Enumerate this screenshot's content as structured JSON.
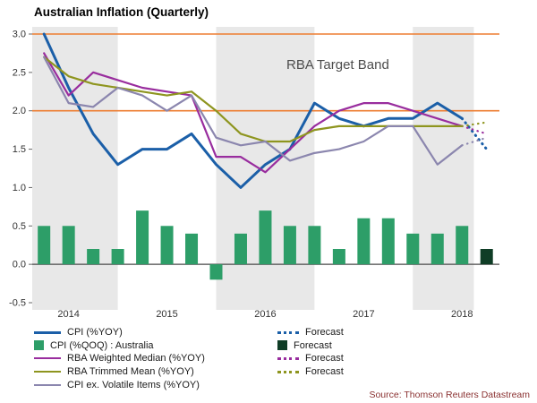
{
  "chart_data": {
    "type": "line+bar",
    "title": "Australian Inflation (Quarterly)",
    "source": "Source: Thomson Reuters Datastream",
    "ylim": [
      -0.5,
      3.0
    ],
    "yticks": [
      -0.5,
      0.0,
      0.5,
      1.0,
      1.5,
      2.0,
      2.5,
      3.0
    ],
    "x_domain": [
      2014.13,
      2018.88
    ],
    "x_start": 2014.25,
    "x_years": [
      2014,
      2015,
      2016,
      2017,
      2018
    ],
    "bands": [
      [
        2014,
        2015
      ],
      [
        2016,
        2017
      ],
      [
        2018,
        2018.62
      ]
    ],
    "target_band": {
      "low": 2.0,
      "high": 3.0,
      "label": "RBA Target Band"
    },
    "quarters": [
      "2014Q2",
      "2014Q3",
      "2014Q4",
      "2015Q1",
      "2015Q2",
      "2015Q3",
      "2015Q4",
      "2016Q1",
      "2016Q2",
      "2016Q3",
      "2016Q4",
      "2017Q1",
      "2017Q2",
      "2017Q3",
      "2017Q4",
      "2018Q1",
      "2018Q2",
      "2018Q3"
    ],
    "forecast_quarter": "2018Q4",
    "colors": {
      "blue": "#1b5fa8",
      "green": "#2d9e68",
      "darkgreen": "#0f3d26",
      "purple": "#992d9e",
      "olive": "#8e951f",
      "gray": "#8b86ae",
      "orange": "#ed7d31",
      "band": "#e8e8e8",
      "zero": "#4a4a4a"
    },
    "series": [
      {
        "name": "CPI (%YOY)",
        "type": "line",
        "color": "blue",
        "width": 3,
        "values": [
          3.0,
          2.3,
          1.7,
          1.3,
          1.5,
          1.5,
          1.7,
          1.3,
          1.0,
          1.3,
          1.5,
          2.1,
          1.9,
          1.8,
          1.9,
          1.9,
          2.1,
          1.9
        ],
        "forecast": [
          1.5
        ]
      },
      {
        "name": "CPI (%QOQ) : Australia",
        "type": "bar",
        "color": "green",
        "forecast_color": "darkgreen",
        "values": [
          0.5,
          0.5,
          0.2,
          0.2,
          0.7,
          0.5,
          0.4,
          -0.2,
          0.4,
          0.7,
          0.5,
          0.5,
          0.2,
          0.6,
          0.6,
          0.4,
          0.4,
          0.5
        ],
        "forecast": [
          0.2
        ]
      },
      {
        "name": "RBA Weighted Median (%YOY)",
        "type": "line",
        "color": "purple",
        "width": 2.2,
        "values": [
          2.75,
          2.2,
          2.5,
          2.4,
          2.3,
          2.25,
          2.2,
          1.4,
          1.4,
          1.2,
          1.5,
          1.8,
          2.0,
          2.1,
          2.1,
          2.0,
          1.9,
          1.8
        ],
        "forecast": [
          1.7
        ]
      },
      {
        "name": "RBA Trimmed Mean (%YOY)",
        "type": "line",
        "color": "olive",
        "width": 2.2,
        "values": [
          2.7,
          2.45,
          2.35,
          2.3,
          2.25,
          2.2,
          2.25,
          2.0,
          1.7,
          1.6,
          1.6,
          1.75,
          1.8,
          1.8,
          1.8,
          1.8,
          1.8,
          1.8
        ],
        "forecast": [
          1.85
        ]
      },
      {
        "name": "CPI ex. Volatile Items (%YOY)",
        "type": "line",
        "color": "gray",
        "width": 2.2,
        "values": [
          2.7,
          2.1,
          2.05,
          2.3,
          2.2,
          2.0,
          2.2,
          1.65,
          1.55,
          1.6,
          1.35,
          1.45,
          1.5,
          1.6,
          1.8,
          1.8,
          1.3,
          1.55
        ],
        "forecast": [
          1.65
        ]
      }
    ]
  },
  "legend": {
    "left": [
      {
        "label": "CPI (%YOY)",
        "swatch": "line-thick",
        "color": "blue"
      },
      {
        "label": "CPI (%QOQ) : Australia",
        "swatch": "square",
        "color": "green"
      },
      {
        "label": "RBA Weighted Median (%YOY)",
        "swatch": "line",
        "color": "purple"
      },
      {
        "label": "RBA Trimmed Mean (%YOY)",
        "swatch": "line",
        "color": "olive"
      },
      {
        "label": "CPI ex. Volatile Items (%YOY)",
        "swatch": "line",
        "color": "gray"
      }
    ],
    "right": [
      {
        "label": "Forecast",
        "swatch": "dotted",
        "color": "blue"
      },
      {
        "label": "Forecast",
        "swatch": "square",
        "color": "darkgreen"
      },
      {
        "label": "Forecast",
        "swatch": "dotted",
        "color": "purple"
      },
      {
        "label": "Forecast",
        "swatch": "dotted",
        "color": "olive"
      }
    ]
  }
}
